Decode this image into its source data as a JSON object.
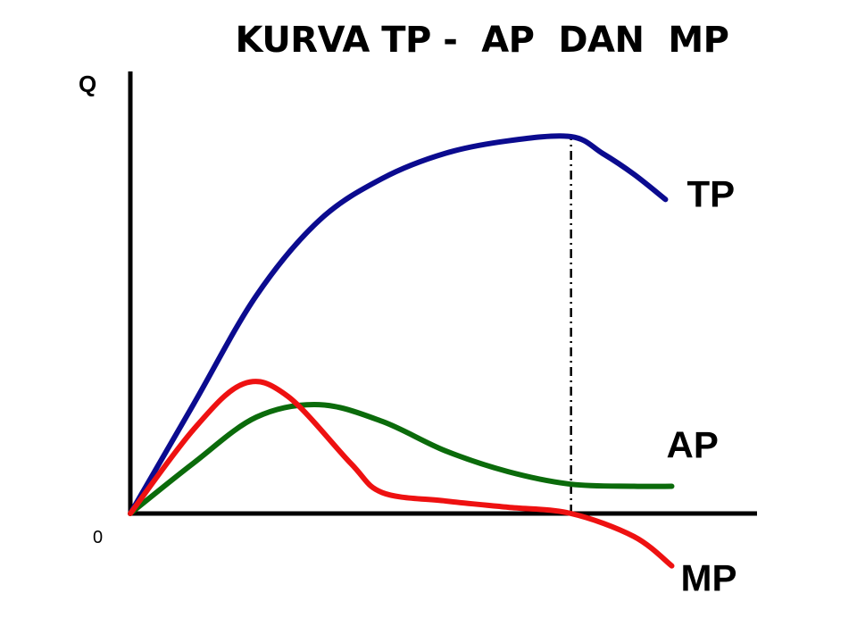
{
  "chart_data": {
    "type": "line",
    "title": "KURVA TP -  AP  DAN  MP",
    "ylabel": "Q",
    "origin_label": "0",
    "grid": false,
    "legend": "curve-end labels",
    "xlim": [
      0,
      100
    ],
    "ylim": [
      -13,
      100
    ],
    "series": [
      {
        "name": "TP",
        "color": "#0b0b8f",
        "points": [
          [
            0,
            0
          ],
          [
            10,
            26
          ],
          [
            20,
            52
          ],
          [
            30,
            70
          ],
          [
            40,
            80
          ],
          [
            50,
            86
          ],
          [
            60,
            89
          ],
          [
            70,
            90
          ],
          [
            75,
            86
          ],
          [
            80,
            81
          ],
          [
            85,
            75
          ]
        ]
      },
      {
        "name": "AP",
        "color": "#0b6b0b",
        "points": [
          [
            0,
            0
          ],
          [
            10,
            12
          ],
          [
            20,
            23
          ],
          [
            30,
            26
          ],
          [
            40,
            22
          ],
          [
            50,
            15
          ],
          [
            60,
            10
          ],
          [
            70,
            7
          ],
          [
            80,
            6.5
          ],
          [
            86,
            6.5
          ]
        ]
      },
      {
        "name": "MP",
        "color": "#ee1111",
        "points": [
          [
            0,
            0
          ],
          [
            10,
            20
          ],
          [
            18,
            31
          ],
          [
            25,
            28
          ],
          [
            35,
            12
          ],
          [
            40,
            5
          ],
          [
            50,
            3
          ],
          [
            60,
            1.5
          ],
          [
            70,
            0
          ],
          [
            80,
            -5.5
          ],
          [
            86,
            -12.5
          ]
        ]
      }
    ],
    "annotations": [
      {
        "type": "vertical-dashed-line",
        "x": 70,
        "from_y": 0,
        "to_y": 90
      }
    ]
  }
}
